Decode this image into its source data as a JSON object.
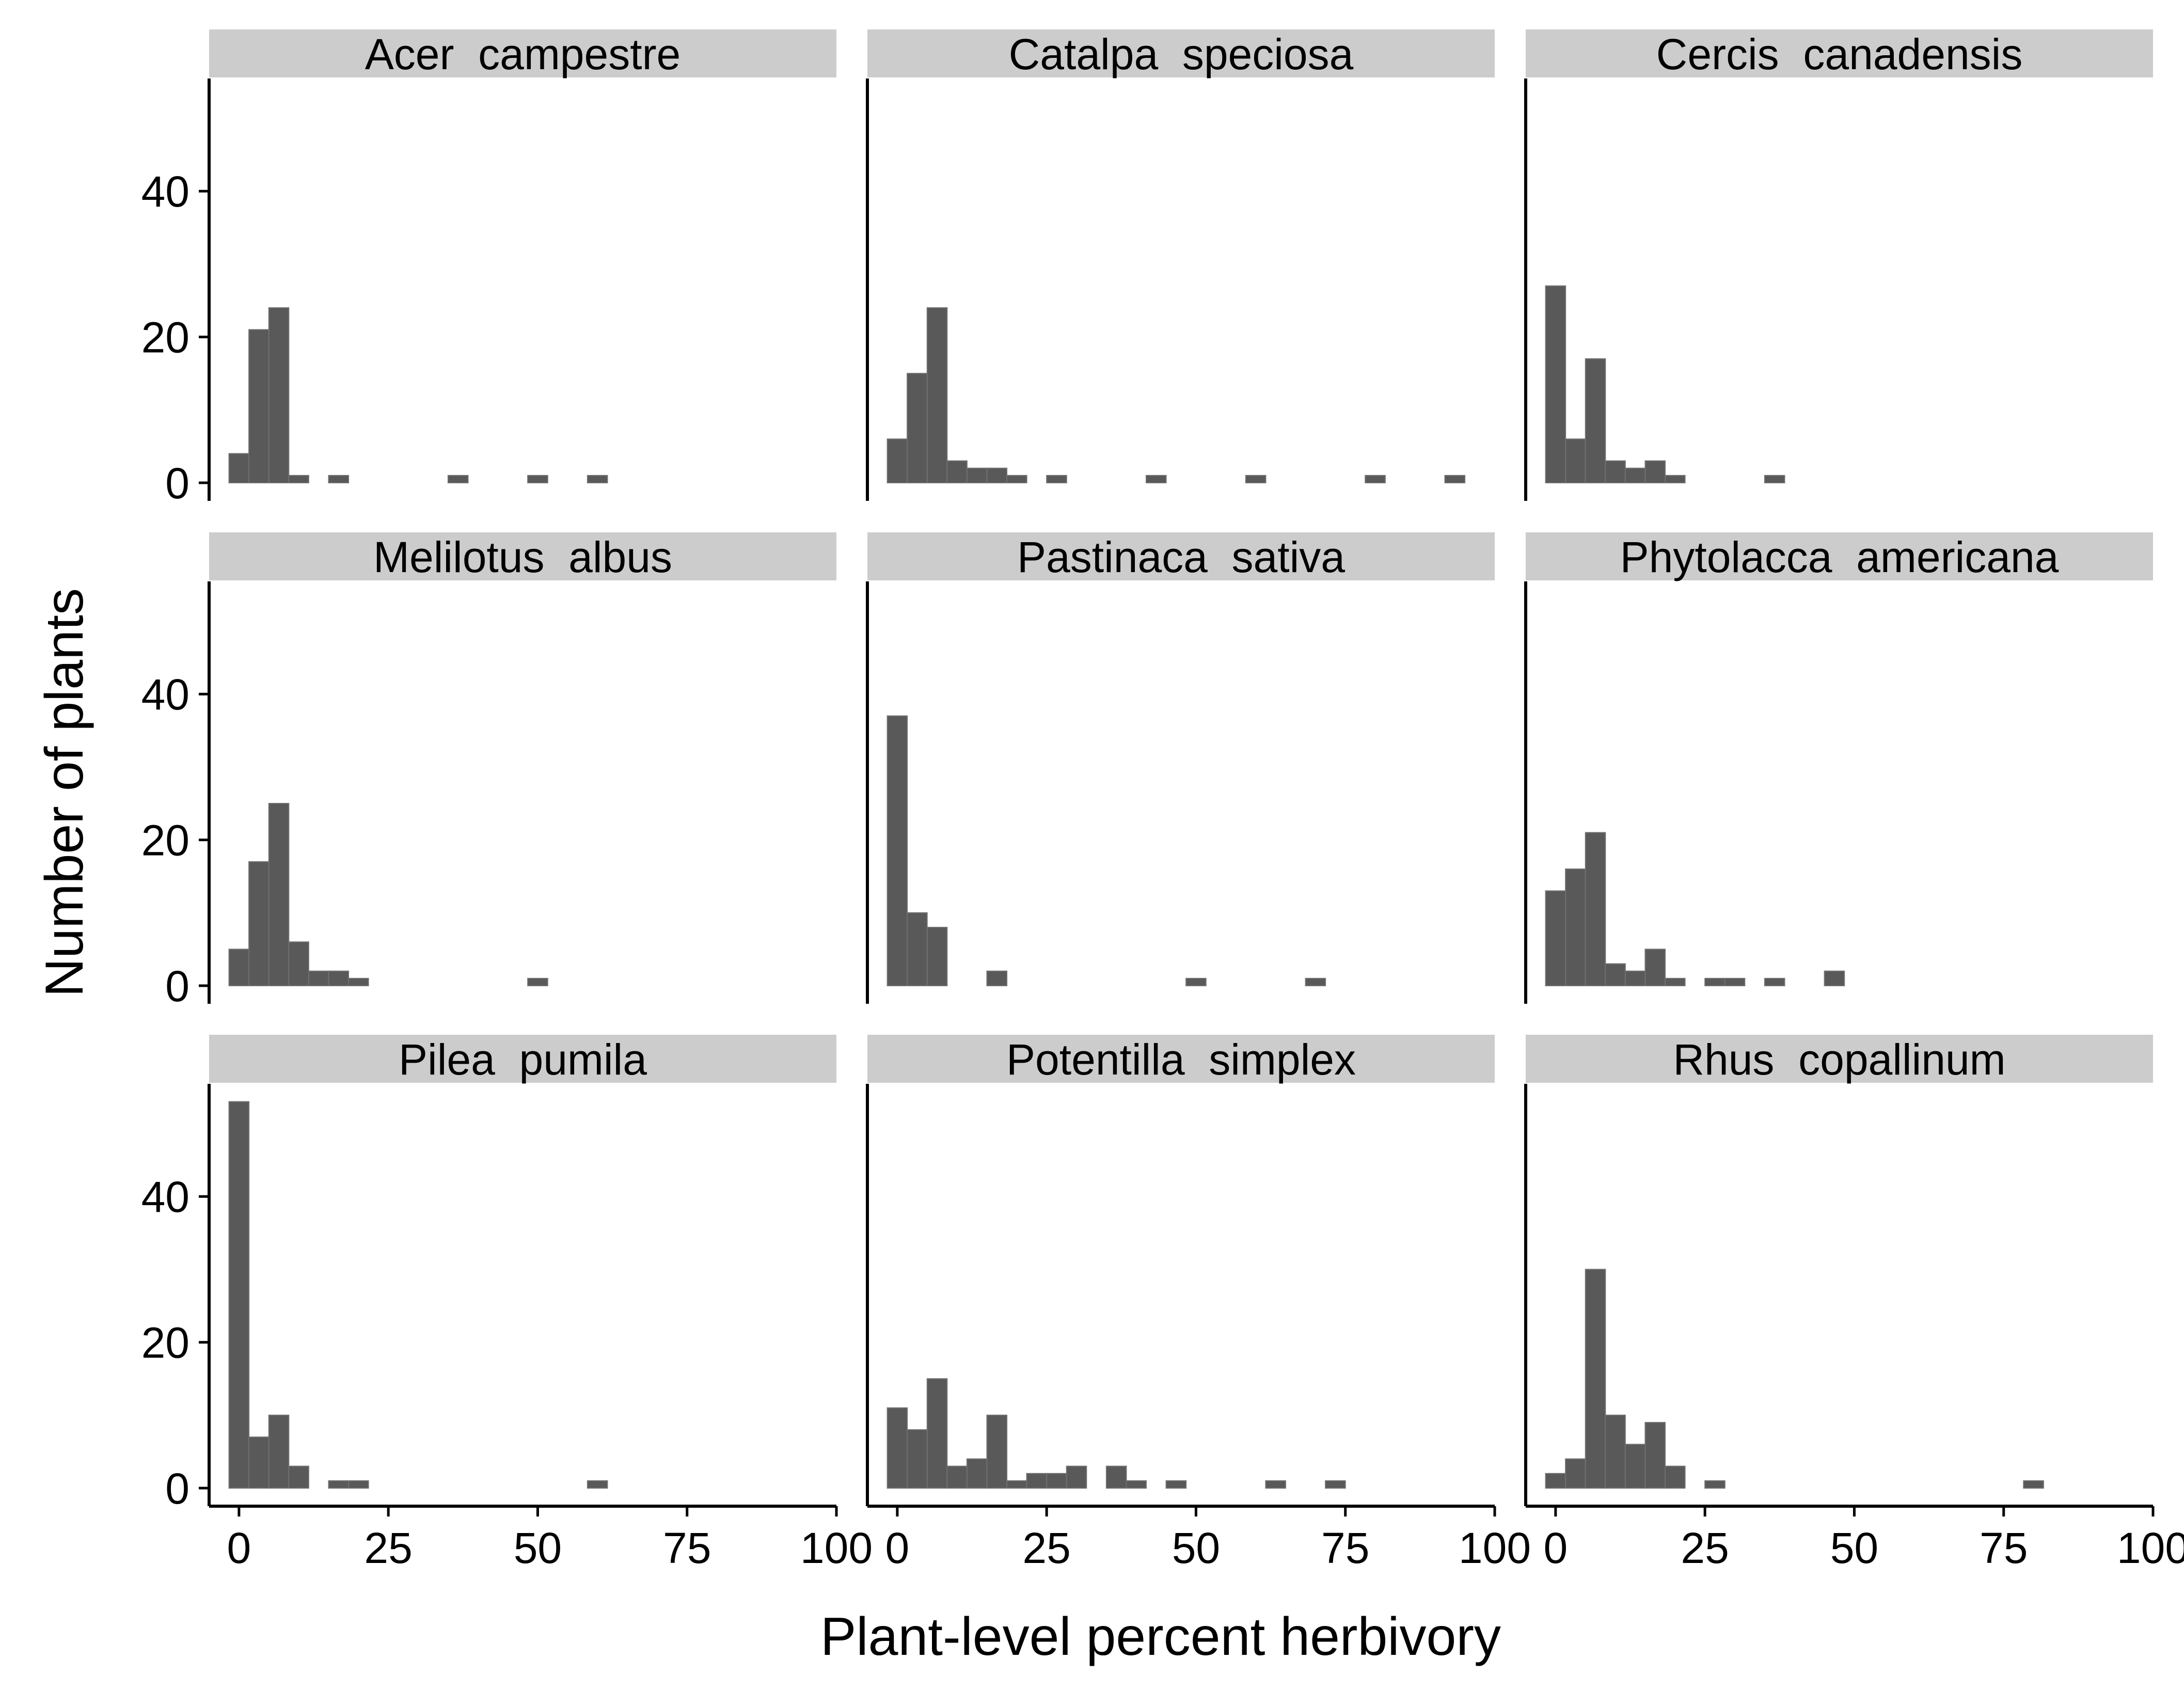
{
  "chart_data": {
    "type": "bar",
    "layout": "faceted histogram, 3 x 3 panels, shared axes",
    "xlabel": "Plant-level percent herbivory",
    "ylabel": "Number of plants",
    "xlim": [
      -5,
      100
    ],
    "ylim": [
      0,
      55
    ],
    "x_ticks": [
      0,
      25,
      50,
      75,
      100
    ],
    "y_ticks": [
      0,
      20,
      40
    ],
    "bin_width": 3.33,
    "bar_color": "#595959",
    "strip_color": "#cccccc",
    "grid": false,
    "panels": [
      {
        "title": "Acer  campestre",
        "bins": [
          [
            0,
            4
          ],
          [
            3.33,
            21
          ],
          [
            6.67,
            24
          ],
          [
            10,
            1
          ],
          [
            16.67,
            1
          ],
          [
            36.67,
            1
          ],
          [
            50,
            1
          ],
          [
            60,
            1
          ]
        ]
      },
      {
        "title": "Catalpa  speciosa",
        "bins": [
          [
            0,
            6
          ],
          [
            3.33,
            15
          ],
          [
            6.67,
            24
          ],
          [
            10,
            3
          ],
          [
            13.33,
            2
          ],
          [
            16.67,
            2
          ],
          [
            20,
            1
          ],
          [
            26.67,
            1
          ],
          [
            43.33,
            1
          ],
          [
            60,
            1
          ],
          [
            80,
            1
          ],
          [
            93.33,
            1
          ]
        ]
      },
      {
        "title": "Cercis  canadensis",
        "bins": [
          [
            0,
            27
          ],
          [
            3.33,
            6
          ],
          [
            6.67,
            17
          ],
          [
            10,
            3
          ],
          [
            13.33,
            2
          ],
          [
            16.67,
            3
          ],
          [
            20,
            1
          ],
          [
            36.67,
            1
          ]
        ]
      },
      {
        "title": "Melilotus  albus",
        "bins": [
          [
            0,
            5
          ],
          [
            3.33,
            17
          ],
          [
            6.67,
            25
          ],
          [
            10,
            6
          ],
          [
            13.33,
            2
          ],
          [
            16.67,
            2
          ],
          [
            20,
            1
          ],
          [
            50,
            1
          ]
        ]
      },
      {
        "title": "Pastinaca  sativa",
        "bins": [
          [
            0,
            37
          ],
          [
            3.33,
            10
          ],
          [
            6.67,
            8
          ],
          [
            16.67,
            2
          ],
          [
            50,
            1
          ],
          [
            70,
            1
          ]
        ]
      },
      {
        "title": "Phytolacca  americana",
        "bins": [
          [
            0,
            13
          ],
          [
            3.33,
            16
          ],
          [
            6.67,
            21
          ],
          [
            10,
            3
          ],
          [
            13.33,
            2
          ],
          [
            16.67,
            5
          ],
          [
            20,
            1
          ],
          [
            26.67,
            1
          ],
          [
            30,
            1
          ],
          [
            36.67,
            1
          ],
          [
            46.67,
            2
          ]
        ]
      },
      {
        "title": "Pilea  pumila",
        "bins": [
          [
            0,
            53
          ],
          [
            3.33,
            7
          ],
          [
            6.67,
            10
          ],
          [
            10,
            3
          ],
          [
            16.67,
            1
          ],
          [
            20,
            1
          ],
          [
            60,
            1
          ]
        ]
      },
      {
        "title": "Potentilla  simplex",
        "bins": [
          [
            0,
            11
          ],
          [
            3.33,
            8
          ],
          [
            6.67,
            15
          ],
          [
            10,
            3
          ],
          [
            13.33,
            4
          ],
          [
            16.67,
            10
          ],
          [
            20,
            1
          ],
          [
            23.33,
            2
          ],
          [
            26.67,
            2
          ],
          [
            30,
            3
          ],
          [
            36.67,
            3
          ],
          [
            40,
            1
          ],
          [
            46.67,
            1
          ],
          [
            63.33,
            1
          ],
          [
            73.33,
            1
          ]
        ]
      },
      {
        "title": "Rhus  copallinum",
        "bins": [
          [
            0,
            2
          ],
          [
            3.33,
            4
          ],
          [
            6.67,
            30
          ],
          [
            10,
            10
          ],
          [
            13.33,
            6
          ],
          [
            16.67,
            9
          ],
          [
            20,
            3
          ],
          [
            26.67,
            1
          ],
          [
            80,
            1
          ]
        ]
      }
    ]
  }
}
